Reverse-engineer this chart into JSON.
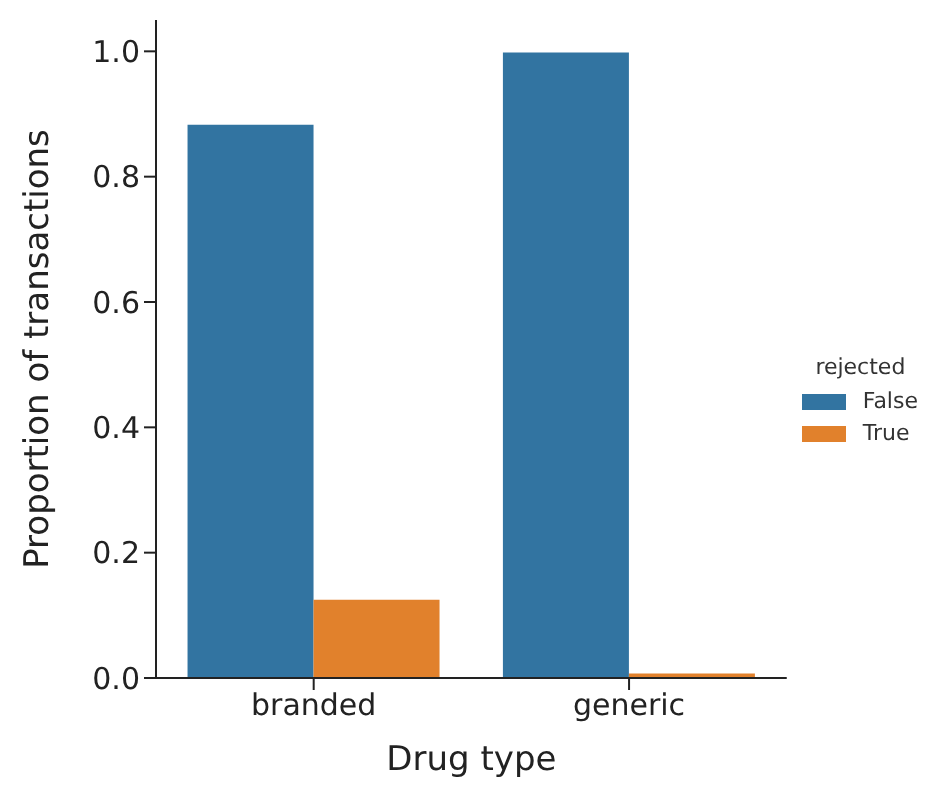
{
  "chart_data": {
    "type": "bar",
    "xlabel": "Drug type",
    "ylabel": "Proportion of transactions",
    "legend_title": "rejected",
    "categories": [
      "branded",
      "generic"
    ],
    "series": [
      {
        "name": "False",
        "color": "#3274a1",
        "values": [
          0.883,
          0.998
        ]
      },
      {
        "name": "True",
        "color": "#e1812c",
        "values": [
          0.125,
          0.007
        ]
      }
    ],
    "ylim": [
      0,
      1.05
    ],
    "yticks": [
      {
        "value": 0,
        "label": "0.0"
      },
      {
        "value": 0.2,
        "label": "0.2"
      },
      {
        "value": 0.4,
        "label": "0.4"
      },
      {
        "value": 0.6,
        "label": "0.6"
      },
      {
        "value": 0.8,
        "label": "0.8"
      },
      {
        "value": 1,
        "label": "1.0"
      }
    ],
    "grid": false,
    "legend": "right"
  }
}
